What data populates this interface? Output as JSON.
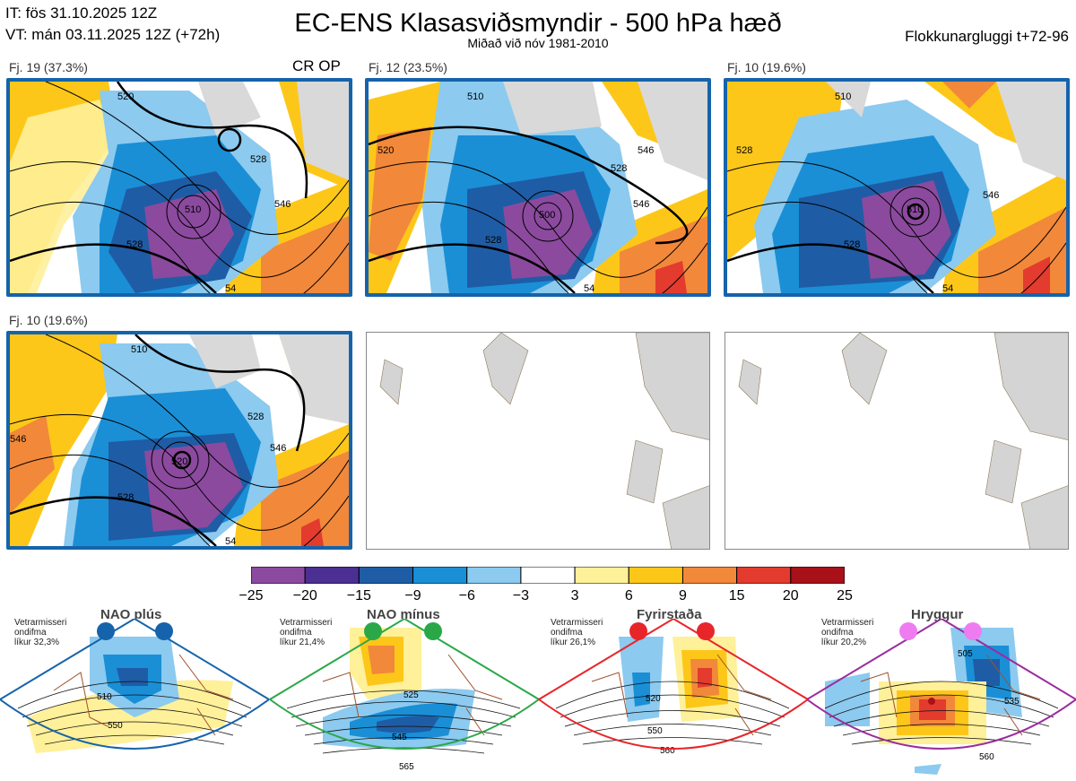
{
  "header": {
    "it_line": "IT: fös 31.10.2025 12Z",
    "vt_line": "VT: mán 03.11.2025 12Z  (+72h)",
    "title": "EC-ENS Klasasviðsmyndir - 500 hPa hæð",
    "subtitle": "Miðað við nóv 1981-2010",
    "cluster_window": "Flokkunargluggi t+72-96"
  },
  "panels": [
    {
      "label": "Fj. 19 (37.3%)",
      "tag": "CR OP",
      "contours": [
        "520",
        "510",
        "528",
        "546",
        "528",
        "54"
      ]
    },
    {
      "label": "Fj. 12 (23.5%)",
      "contours": [
        "510",
        "520",
        "528",
        "500",
        "528",
        "546",
        "546",
        "54"
      ]
    },
    {
      "label": "Fj. 10 (19.6%)",
      "contours": [
        "510",
        "528",
        "510",
        "528",
        "546",
        "54"
      ]
    },
    {
      "label": "Fj. 10 (19.6%)",
      "contours": [
        "510",
        "528",
        "520",
        "528",
        "546",
        "546",
        "54"
      ]
    }
  ],
  "colorbar": {
    "ticks": [
      "−25",
      "−20",
      "−15",
      "−9",
      "−6",
      "−3",
      "3",
      "6",
      "9",
      "15",
      "20",
      "25"
    ],
    "colors": [
      "#8b4a9e",
      "#4b2f93",
      "#1f5ca6",
      "#1a8fd6",
      "#8ccaef",
      "#ffffff",
      "#fff09a",
      "#fdc719",
      "#f2883a",
      "#e33b2e",
      "#a81118"
    ]
  },
  "regimes": [
    {
      "name": "NAO plús",
      "info": [
        "Vetrarmisseri",
        "ondifma",
        "líkur 32,3%"
      ],
      "color": "#1563ab",
      "labels": [
        "510",
        "550"
      ]
    },
    {
      "name": "NAO mínus",
      "info": [
        "Vetrarmisseri",
        "ondifma",
        "líkur 21,4%"
      ],
      "color": "#2aa848",
      "labels": [
        "525",
        "545",
        "565"
      ]
    },
    {
      "name": "Fyrirstaða",
      "info": [
        "Vetrarmisseri",
        "ondifma",
        "líkur 26,1%"
      ],
      "color": "#e8262a",
      "labels": [
        "520",
        "550",
        "560"
      ]
    },
    {
      "name": "Hryggur",
      "info": [
        "Vetrarmisseri",
        "ondifma",
        "líkur 20,2%"
      ],
      "color": "#9b2c9e",
      "labels": [
        "505",
        "535",
        "560"
      ]
    }
  ]
}
